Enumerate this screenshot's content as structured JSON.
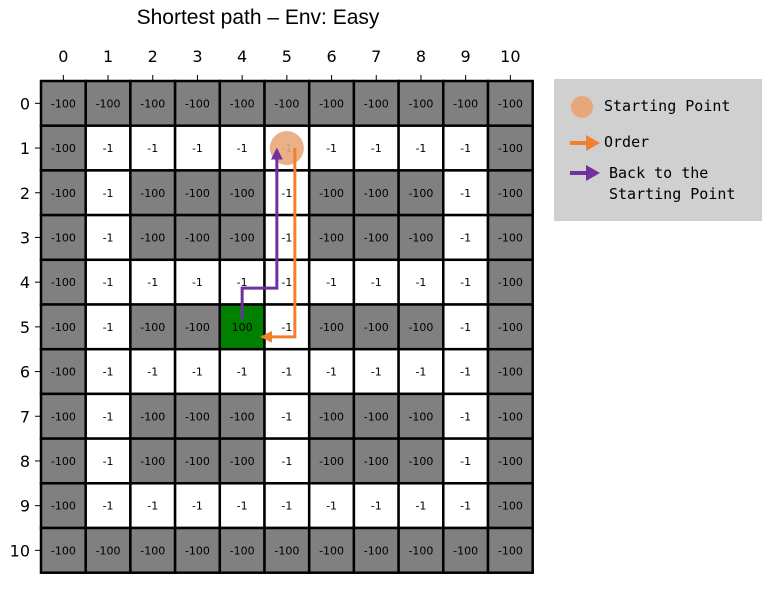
{
  "title": "Shortest path – Env: Easy",
  "colors": {
    "wall": "#808080",
    "open": "#ffffff",
    "goal": "#008000",
    "border": "#000000",
    "start_marker": "#e8a77a",
    "order_path": "#f07f30",
    "back_path": "#7030a0",
    "legend_bg": "#d0d0d0"
  },
  "legend": {
    "start_label": "Starting Point",
    "order_label": "Order",
    "back_label": "Back to the\nStarting Point"
  },
  "chart_data": {
    "type": "heatmap",
    "title": "Shortest path – Env: Easy",
    "x_ticks": [
      "0",
      "1",
      "2",
      "3",
      "4",
      "5",
      "6",
      "7",
      "8",
      "9",
      "10"
    ],
    "y_ticks": [
      "0",
      "1",
      "2",
      "3",
      "4",
      "5",
      "6",
      "7",
      "8",
      "9",
      "10"
    ],
    "grid": [
      [
        "-100",
        "-100",
        "-100",
        "-100",
        "-100",
        "-100",
        "-100",
        "-100",
        "-100",
        "-100",
        "-100"
      ],
      [
        "-100",
        "-1",
        "-1",
        "-1",
        "-1",
        "-1",
        "-1",
        "-1",
        "-1",
        "-1",
        "-100"
      ],
      [
        "-100",
        "-1",
        "-100",
        "-100",
        "-100",
        "-1",
        "-100",
        "-100",
        "-100",
        "-1",
        "-100"
      ],
      [
        "-100",
        "-1",
        "-100",
        "-100",
        "-100",
        "-1",
        "-100",
        "-100",
        "-100",
        "-1",
        "-100"
      ],
      [
        "-100",
        "-1",
        "-1",
        "-1",
        "-1",
        "-1",
        "-1",
        "-1",
        "-1",
        "-1",
        "-100"
      ],
      [
        "-100",
        "-1",
        "-100",
        "-100",
        "100",
        "-1",
        "-100",
        "-100",
        "-100",
        "-1",
        "-100"
      ],
      [
        "-100",
        "-1",
        "-1",
        "-1",
        "-1",
        "-1",
        "-1",
        "-1",
        "-1",
        "-1",
        "-100"
      ],
      [
        "-100",
        "-1",
        "-100",
        "-100",
        "-100",
        "-1",
        "-100",
        "-100",
        "-100",
        "-1",
        "-100"
      ],
      [
        "-100",
        "-1",
        "-100",
        "-100",
        "-100",
        "-1",
        "-100",
        "-100",
        "-100",
        "-1",
        "-100"
      ],
      [
        "-100",
        "-1",
        "-1",
        "-1",
        "-1",
        "-1",
        "-1",
        "-1",
        "-1",
        "-1",
        "-100"
      ],
      [
        "-100",
        "-100",
        "-100",
        "-100",
        "-100",
        "-100",
        "-100",
        "-100",
        "-100",
        "-100",
        "-100"
      ]
    ],
    "start": [
      5,
      1
    ],
    "order_path": [
      [
        5,
        1
      ],
      [
        5,
        5
      ],
      [
        4,
        5
      ]
    ],
    "back_path": [
      [
        4,
        5
      ],
      [
        4,
        4
      ],
      [
        5,
        4
      ],
      [
        5,
        1
      ]
    ]
  }
}
